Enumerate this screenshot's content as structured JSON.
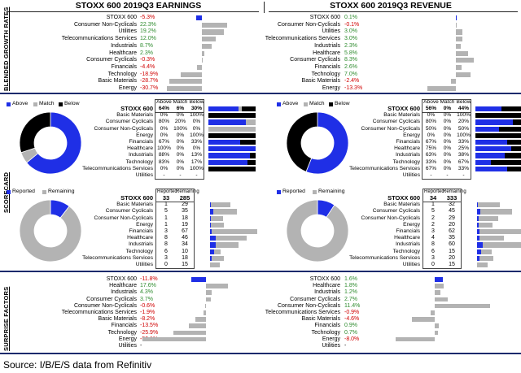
{
  "colors": {
    "blue": "#1f2fe6",
    "grey": "#b3b3b3",
    "black": "#000000",
    "pos": "#2e8b2e",
    "neg": "#d00000"
  },
  "header": {
    "earnings_title": "STOXX 600 2019Q3 EARNINGS",
    "revenue_title": "STOXX 600 2019Q3 REVENUE"
  },
  "section_labels": {
    "growth": "BLENDED GROWTH RATES",
    "scorecard": "SCORECARD",
    "surprise": "SURPRISE FACTORS"
  },
  "legend": {
    "above": "Above",
    "match": "Match",
    "below": "Below",
    "reported": "Reported",
    "remaining": "Remaining"
  },
  "scorecard_headers": {
    "index": "STOXX 600",
    "above": "Above",
    "match": "Match",
    "below": "Below",
    "reported": "Reported",
    "remaining": "Remaining"
  },
  "source": "Source: I/B/E/S data from Refinitiv",
  "chart_data": [
    {
      "type": "bar",
      "panel": "growth-earnings",
      "categories": [
        "STOXX 600",
        "Consumer Non-Cyclicals",
        "Utilities",
        "Telecommunications Services",
        "Industrials",
        "Healthcare",
        "Consumer Cyclicals",
        "Financials",
        "Technology",
        "Basic Materials",
        "Energy"
      ],
      "labels": [
        "-5.3%",
        "22.3%",
        "19.2%",
        "12.0%",
        "8.7%",
        "2.3%",
        "-0.3%",
        "-4.4%",
        "-18.9%",
        "-28.7%",
        "-30.7%"
      ],
      "values": [
        -5.3,
        22.3,
        19.2,
        12.0,
        8.7,
        2.3,
        -0.3,
        -4.4,
        -18.9,
        -28.7,
        -30.7
      ]
    },
    {
      "type": "bar",
      "panel": "growth-revenue",
      "categories": [
        "STOXX 600",
        "Consumer Non-Cyclicals",
        "Utilities",
        "Telecommunications Services",
        "Industrials",
        "Healthcare",
        "Consumer Cyclicals",
        "Financials",
        "Technology",
        "Basic Materials",
        "Energy"
      ],
      "labels": [
        "0.1%",
        "-0.1%",
        "3.0%",
        "3.0%",
        "2.3%",
        "5.8%",
        "8.3%",
        "2.6%",
        "7.0%",
        "-2.4%",
        "-13.3%"
      ],
      "values": [
        0.1,
        -0.1,
        3.0,
        3.0,
        2.3,
        5.8,
        8.3,
        2.6,
        7.0,
        -2.4,
        -13.3
      ]
    },
    {
      "type": "table",
      "panel": "scorecard-earnings-results",
      "columns": [
        "Above",
        "Match",
        "Below"
      ],
      "index": {
        "name": "STOXX 600",
        "above": "64%",
        "match": "6%",
        "below": "30%",
        "values": [
          64,
          6,
          30
        ]
      },
      "rows": [
        {
          "name": "Basic Materials",
          "above": "0%",
          "match": "0%",
          "below": "100%",
          "values": [
            0,
            0,
            100
          ]
        },
        {
          "name": "Consumer Cyclicals",
          "above": "80%",
          "match": "20%",
          "below": "0%",
          "values": [
            80,
            20,
            0
          ]
        },
        {
          "name": "Consumer Non-Cyclicals",
          "above": "0%",
          "match": "100%",
          "below": "0%",
          "values": [
            0,
            100,
            0
          ]
        },
        {
          "name": "Energy",
          "above": "0%",
          "match": "0%",
          "below": "100%",
          "values": [
            0,
            0,
            100
          ]
        },
        {
          "name": "Financials",
          "above": "67%",
          "match": "0%",
          "below": "33%",
          "values": [
            67,
            0,
            33
          ]
        },
        {
          "name": "Healthcare",
          "above": "100%",
          "match": "0%",
          "below": "0%",
          "values": [
            100,
            0,
            0
          ]
        },
        {
          "name": "Industrials",
          "above": "88%",
          "match": "0%",
          "below": "13%",
          "values": [
            88,
            0,
            13
          ]
        },
        {
          "name": "Technology",
          "above": "83%",
          "match": "0%",
          "below": "17%",
          "values": [
            83,
            0,
            17
          ]
        },
        {
          "name": "Telecommunications Services",
          "above": "0%",
          "match": "0%",
          "below": "100%",
          "values": [
            0,
            0,
            100
          ]
        },
        {
          "name": "Utilities",
          "above": "-",
          "match": "-",
          "below": "-",
          "values": [
            0,
            0,
            0
          ]
        }
      ],
      "pie": [
        64,
        6,
        30
      ]
    },
    {
      "type": "table",
      "panel": "scorecard-revenue-results",
      "columns": [
        "Above",
        "Match",
        "Below"
      ],
      "index": {
        "name": "STOXX 600",
        "above": "56%",
        "match": "0%",
        "below": "44%",
        "values": [
          56,
          0,
          44
        ]
      },
      "rows": [
        {
          "name": "Basic Materials",
          "above": "0%",
          "match": "0%",
          "below": "100%",
          "values": [
            0,
            0,
            100
          ]
        },
        {
          "name": "Consumer Cyclicals",
          "above": "80%",
          "match": "0%",
          "below": "20%",
          "values": [
            80,
            0,
            20
          ]
        },
        {
          "name": "Consumer Non-Cyclicals",
          "above": "50%",
          "match": "0%",
          "below": "50%",
          "values": [
            50,
            0,
            50
          ]
        },
        {
          "name": "Energy",
          "above": "0%",
          "match": "0%",
          "below": "100%",
          "values": [
            0,
            0,
            100
          ]
        },
        {
          "name": "Financials",
          "above": "67%",
          "match": "0%",
          "below": "33%",
          "values": [
            67,
            0,
            33
          ]
        },
        {
          "name": "Healthcare",
          "above": "75%",
          "match": "0%",
          "below": "25%",
          "values": [
            75,
            0,
            25
          ]
        },
        {
          "name": "Industrials",
          "above": "63%",
          "match": "0%",
          "below": "38%",
          "values": [
            63,
            0,
            38
          ]
        },
        {
          "name": "Technology",
          "above": "33%",
          "match": "0%",
          "below": "67%",
          "values": [
            33,
            0,
            67
          ]
        },
        {
          "name": "Telecommunications Services",
          "above": "67%",
          "match": "0%",
          "below": "33%",
          "values": [
            67,
            0,
            33
          ]
        },
        {
          "name": "Utilities",
          "above": "-",
          "match": "-",
          "below": "-",
          "values": [
            0,
            0,
            0
          ]
        }
      ],
      "pie": [
        56,
        0,
        44
      ]
    },
    {
      "type": "table",
      "panel": "scorecard-earnings-reported",
      "columns": [
        "Reported",
        "Remaining"
      ],
      "index": {
        "name": "STOXX 600",
        "reported": 33,
        "remaining": 285
      },
      "rows": [
        {
          "name": "Basic Materials",
          "reported": 1,
          "remaining": 29
        },
        {
          "name": "Consumer Cyclicals",
          "reported": 5,
          "remaining": 35
        },
        {
          "name": "Consumer Non-Cyclicals",
          "reported": 1,
          "remaining": 18
        },
        {
          "name": "Energy",
          "reported": 1,
          "remaining": 19
        },
        {
          "name": "Financials",
          "reported": 3,
          "remaining": 67
        },
        {
          "name": "Healthcare",
          "reported": 8,
          "remaining": 46
        },
        {
          "name": "Industrials",
          "reported": 8,
          "remaining": 34
        },
        {
          "name": "Technology",
          "reported": 6,
          "remaining": 10
        },
        {
          "name": "Telecommunications Services",
          "reported": 3,
          "remaining": 18
        },
        {
          "name": "Utilities",
          "reported": 0,
          "remaining": 15
        }
      ],
      "pie": [
        33,
        285
      ]
    },
    {
      "type": "table",
      "panel": "scorecard-revenue-reported",
      "columns": [
        "Reported",
        "Remaining"
      ],
      "index": {
        "name": "STOXX 600",
        "reported": 34,
        "remaining": 333
      },
      "rows": [
        {
          "name": "Basic Materials",
          "reported": 1,
          "remaining": 32
        },
        {
          "name": "Consumer Cyclicals",
          "reported": 5,
          "remaining": 45
        },
        {
          "name": "Consumer Non-Cyclicals",
          "reported": 2,
          "remaining": 29
        },
        {
          "name": "Energy",
          "reported": 2,
          "remaining": 20
        },
        {
          "name": "Financials",
          "reported": 3,
          "remaining": 62
        },
        {
          "name": "Healthcare",
          "reported": 4,
          "remaining": 35
        },
        {
          "name": "Industrials",
          "reported": 8,
          "remaining": 60
        },
        {
          "name": "Technology",
          "reported": 6,
          "remaining": 15
        },
        {
          "name": "Telecommunications Services",
          "reported": 3,
          "remaining": 20
        },
        {
          "name": "Utilities",
          "reported": 0,
          "remaining": 15
        }
      ],
      "pie": [
        34,
        333
      ]
    },
    {
      "type": "bar",
      "panel": "surprise-earnings",
      "categories": [
        "STOXX 600",
        "Healthcare",
        "Industrials",
        "Consumer Cyclicals",
        "Consumer Non-Cyclicals",
        "Telecommunications Services",
        "Basic Materials",
        "Financials",
        "Technology",
        "Energy",
        "Utilities"
      ],
      "labels": [
        "-11.8%",
        "17.6%",
        "4.3%",
        "3.7%",
        "-0.6%",
        "-1.9%",
        "-8.2%",
        "-13.5%",
        "-25.9%",
        "-50.1%",
        "-"
      ],
      "values": [
        -11.8,
        17.6,
        4.3,
        3.7,
        -0.6,
        -1.9,
        -8.2,
        -13.5,
        -25.9,
        -50.1,
        null
      ]
    },
    {
      "type": "bar",
      "panel": "surprise-revenue",
      "categories": [
        "STOXX 600",
        "Healthcare",
        "Industrials",
        "Consumer Cyclicals",
        "Consumer Non-Cyclicals",
        "Telecommunications Services",
        "Basic Materials",
        "Financials",
        "Technology",
        "Energy",
        "Utilities"
      ],
      "labels": [
        "1.6%",
        "1.8%",
        "1.2%",
        "2.7%",
        "11.4%",
        "-0.9%",
        "-4.6%",
        "0.9%",
        "0.7%",
        "-8.0%",
        "-"
      ],
      "values": [
        1.6,
        1.8,
        1.2,
        2.7,
        11.4,
        -0.9,
        -4.6,
        0.9,
        0.7,
        -8.0,
        null
      ]
    }
  ]
}
